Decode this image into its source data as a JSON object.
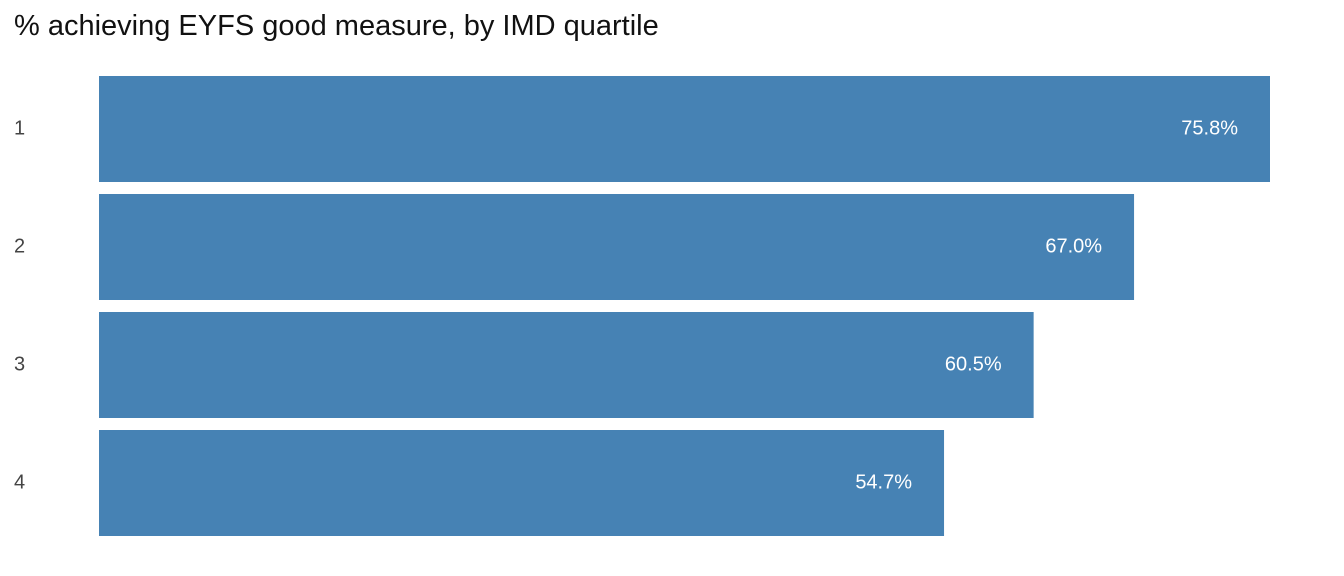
{
  "chart_data": {
    "type": "bar",
    "orientation": "horizontal",
    "title": "% achieving EYFS good measure, by IMD quartile",
    "xlabel": "",
    "ylabel": "",
    "categories": [
      "1",
      "2",
      "3",
      "4"
    ],
    "values": [
      75.8,
      67.0,
      60.5,
      54.7
    ],
    "value_labels": [
      "75.8%",
      "67.0%",
      "60.5%",
      "54.7%"
    ],
    "xlim": [
      0,
      75.8
    ],
    "grid": false,
    "legend": "none",
    "bar_color": "#4682B4",
    "value_label_color": "#FFFFFF"
  }
}
